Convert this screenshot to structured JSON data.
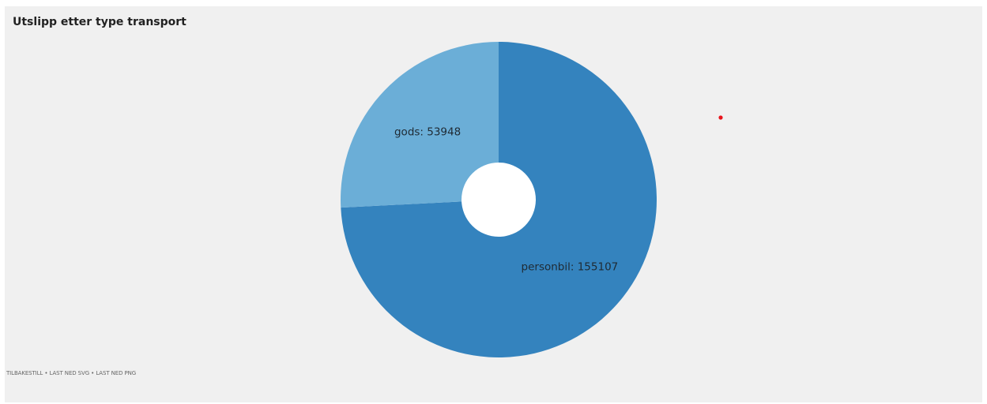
{
  "chart_data": {
    "type": "pie",
    "variant": "donut",
    "title": "Utslipp etter type transport",
    "slices": [
      {
        "label": "personbil",
        "value": 155107,
        "color": "#3483be"
      },
      {
        "label": "gods",
        "value": 53948,
        "color": "#6baed7"
      }
    ],
    "slice_label_format": "{label}: {value}",
    "legend": "none",
    "hole_color": "#ffffff"
  },
  "actions": {
    "reset": "TILBAKESTILL",
    "separator": " • ",
    "download_svg": "LAST NED SVG",
    "download_png": "LAST NED PNG"
  },
  "colors": {
    "panel_background": "#f0f0f0",
    "marker_dot": "#e8141b"
  }
}
